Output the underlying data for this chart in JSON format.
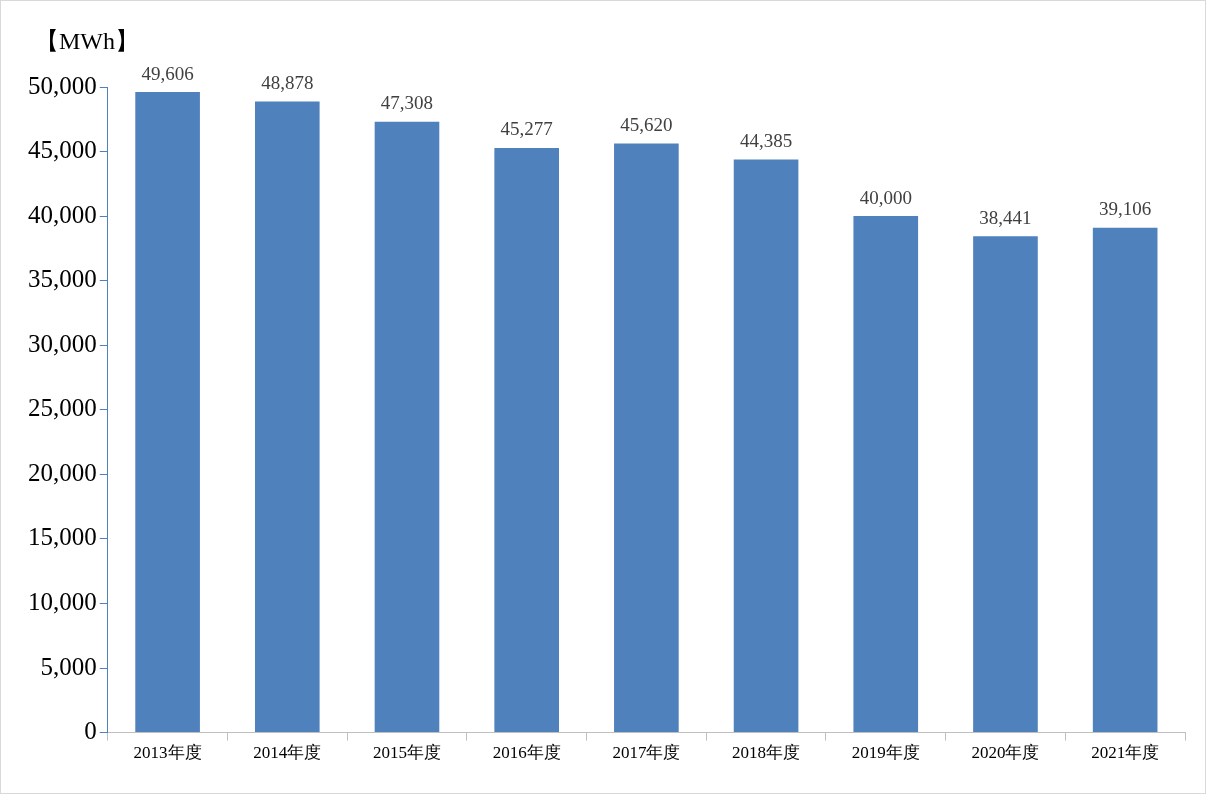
{
  "chart_data": {
    "type": "bar",
    "ylabel": "【MWh】",
    "categories": [
      "2013年度",
      "2014年度",
      "2015年度",
      "2016年度",
      "2017年度",
      "2018年度",
      "2019年度",
      "2020年度",
      "2021年度"
    ],
    "values": [
      49606,
      48878,
      47308,
      45277,
      45620,
      44385,
      40000,
      38441,
      39106
    ],
    "value_labels": [
      "49,606",
      "48,878",
      "47,308",
      "45,277",
      "45,620",
      "44,385",
      "40,000",
      "38,441",
      "39,106"
    ],
    "color": "#4f81bd",
    "ylim": [
      0,
      50000
    ],
    "yticks": [
      0,
      {
        "value": 5000,
        "label": "5,000"
      },
      {
        "value": 10000,
        "label": "10,000"
      },
      {
        "value": 15000,
        "label": "15,000"
      },
      {
        "value": 20000,
        "label": "20,000"
      },
      {
        "value": 25000,
        "label": "25,000"
      },
      {
        "value": 30000,
        "label": "30,000"
      },
      {
        "value": 35000,
        "label": "35,000"
      },
      {
        "value": 40000,
        "label": "40,000"
      },
      {
        "value": 45000,
        "label": "45,000"
      },
      {
        "value": 50000,
        "label": "50,000"
      }
    ],
    "grid": false,
    "legend": false
  }
}
